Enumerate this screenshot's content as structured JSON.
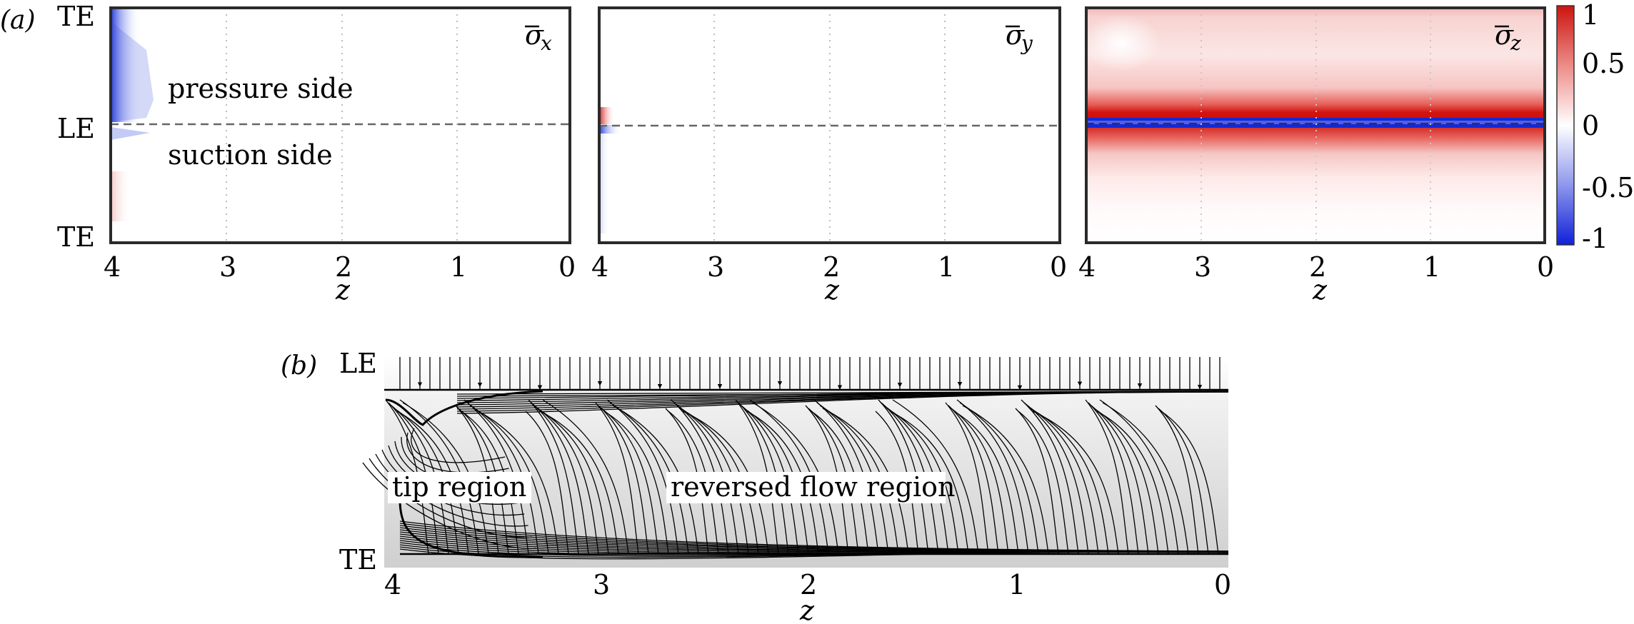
{
  "figure": {
    "panel_a": {
      "tag": "(a)",
      "y_ticks": [
        "TE",
        "LE",
        "TE"
      ],
      "x_ticks": [
        "4",
        "3",
        "2",
        "1",
        "0"
      ],
      "x_label": "z",
      "annotations": {
        "upper": "pressure side",
        "lower": "suction side"
      },
      "subplots": [
        {
          "symbol": "σ",
          "subscript": "x"
        },
        {
          "symbol": "σ",
          "subscript": "y"
        },
        {
          "symbol": "σ",
          "subscript": "z"
        }
      ],
      "colorbar": {
        "ticks": [
          "1",
          "0.5",
          "0",
          "-0.5",
          "-1"
        ],
        "range": [
          -1,
          1
        ],
        "colors": {
          "high": "#cc1410",
          "mid": "#ffffff",
          "low": "#1020d8"
        }
      }
    },
    "panel_b": {
      "tag": "(b)",
      "y_ticks": [
        "LE",
        "TE"
      ],
      "x_ticks": [
        "4",
        "3",
        "2",
        "1",
        "0"
      ],
      "x_label": "z",
      "region_labels": {
        "tip": "tip region",
        "reversed": "reversed flow region"
      }
    }
  }
}
